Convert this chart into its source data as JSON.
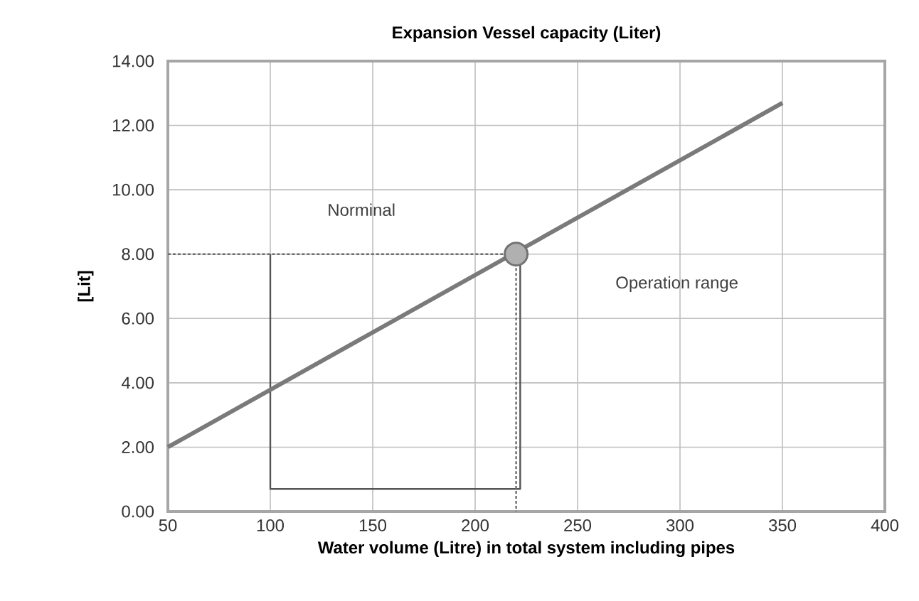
{
  "chart_data": {
    "type": "line",
    "title": "Expansion Vessel capacity (Liter)",
    "xlabel": "Water volume (Litre) in total system including pipes",
    "ylabel": "[Lit]",
    "xlim": [
      50,
      400
    ],
    "xticks": [
      50,
      100,
      150,
      200,
      250,
      300,
      350,
      400
    ],
    "ylim": [
      0,
      14
    ],
    "yticks": [
      {
        "value": 0,
        "label": "0.00"
      },
      {
        "value": 2,
        "label": "2.00"
      },
      {
        "value": 4,
        "label": "4.00"
      },
      {
        "value": 6,
        "label": "6.00"
      },
      {
        "value": 8,
        "label": "8.00"
      },
      {
        "value": 10,
        "label": "10.00"
      },
      {
        "value": 12,
        "label": "12.00"
      },
      {
        "value": 14,
        "label": "14.00"
      }
    ],
    "grid": true,
    "series": [
      {
        "color": "#555555",
        "line_style": "solid",
        "marker": "none",
        "x": [
          100,
          100,
          222,
          222
        ],
        "values": [
          8,
          0.7,
          0.7,
          8
        ]
      },
      {
        "color": "#6d6d6d",
        "line_style": "dotted",
        "marker": "none",
        "x": [
          50,
          220,
          220
        ],
        "values": [
          8,
          8,
          0
        ]
      },
      {
        "color": "#7a7a7a",
        "line_style": "solid",
        "marker": "none",
        "x": [
          50,
          350
        ],
        "values": [
          2.0,
          12.7
        ]
      },
      {
        "type": "scatter",
        "color": "#b0b0b0",
        "marker": "circle",
        "x": [
          220
        ],
        "values": [
          8
        ]
      }
    ],
    "annotations": [
      "Norminal",
      "Operation range"
    ]
  }
}
